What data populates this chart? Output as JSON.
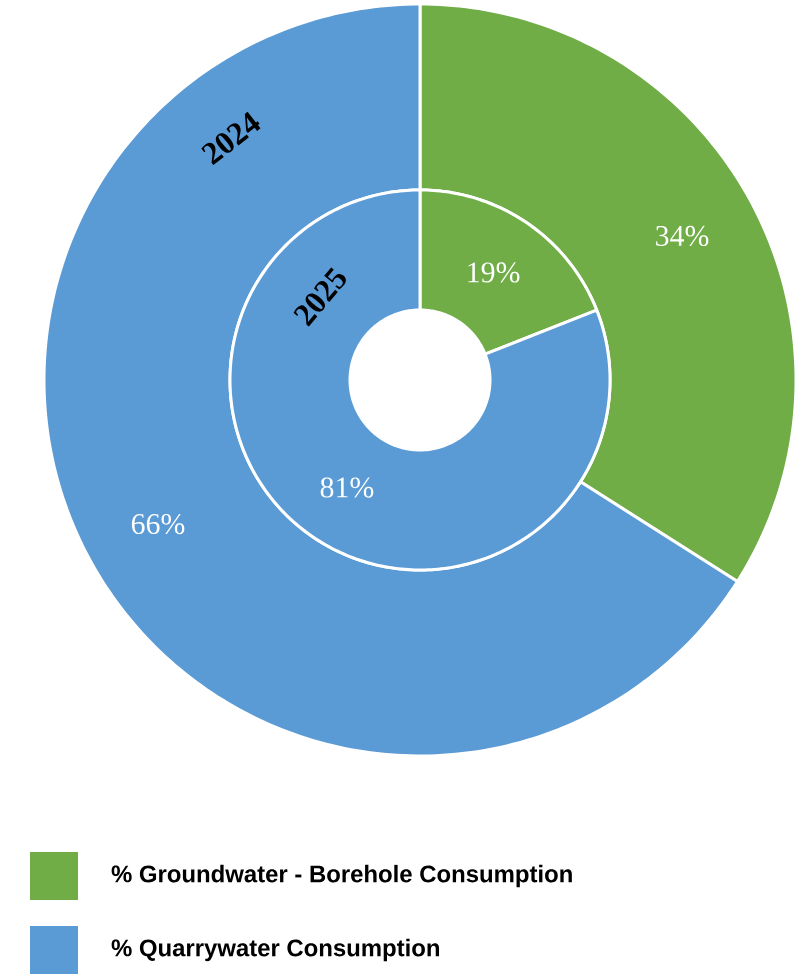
{
  "chart_data": [
    {
      "type": "donut",
      "title": "2024",
      "categories": [
        "% Groundwater - Borehole Consumption",
        "% Quarrywater Consumption"
      ],
      "values": [
        34,
        66
      ],
      "colors": [
        "#70ad47",
        "#5b9bd5"
      ],
      "value_labels": [
        "34%",
        "66%"
      ],
      "legend": "bottom"
    },
    {
      "type": "donut",
      "title": "2025",
      "categories": [
        null,
        null
      ],
      "values": [
        19,
        81
      ],
      "colors": [
        "#70ad47",
        "#5b9bd5"
      ],
      "value_labels": [
        "19%",
        "81%"
      ]
    }
  ]
}
